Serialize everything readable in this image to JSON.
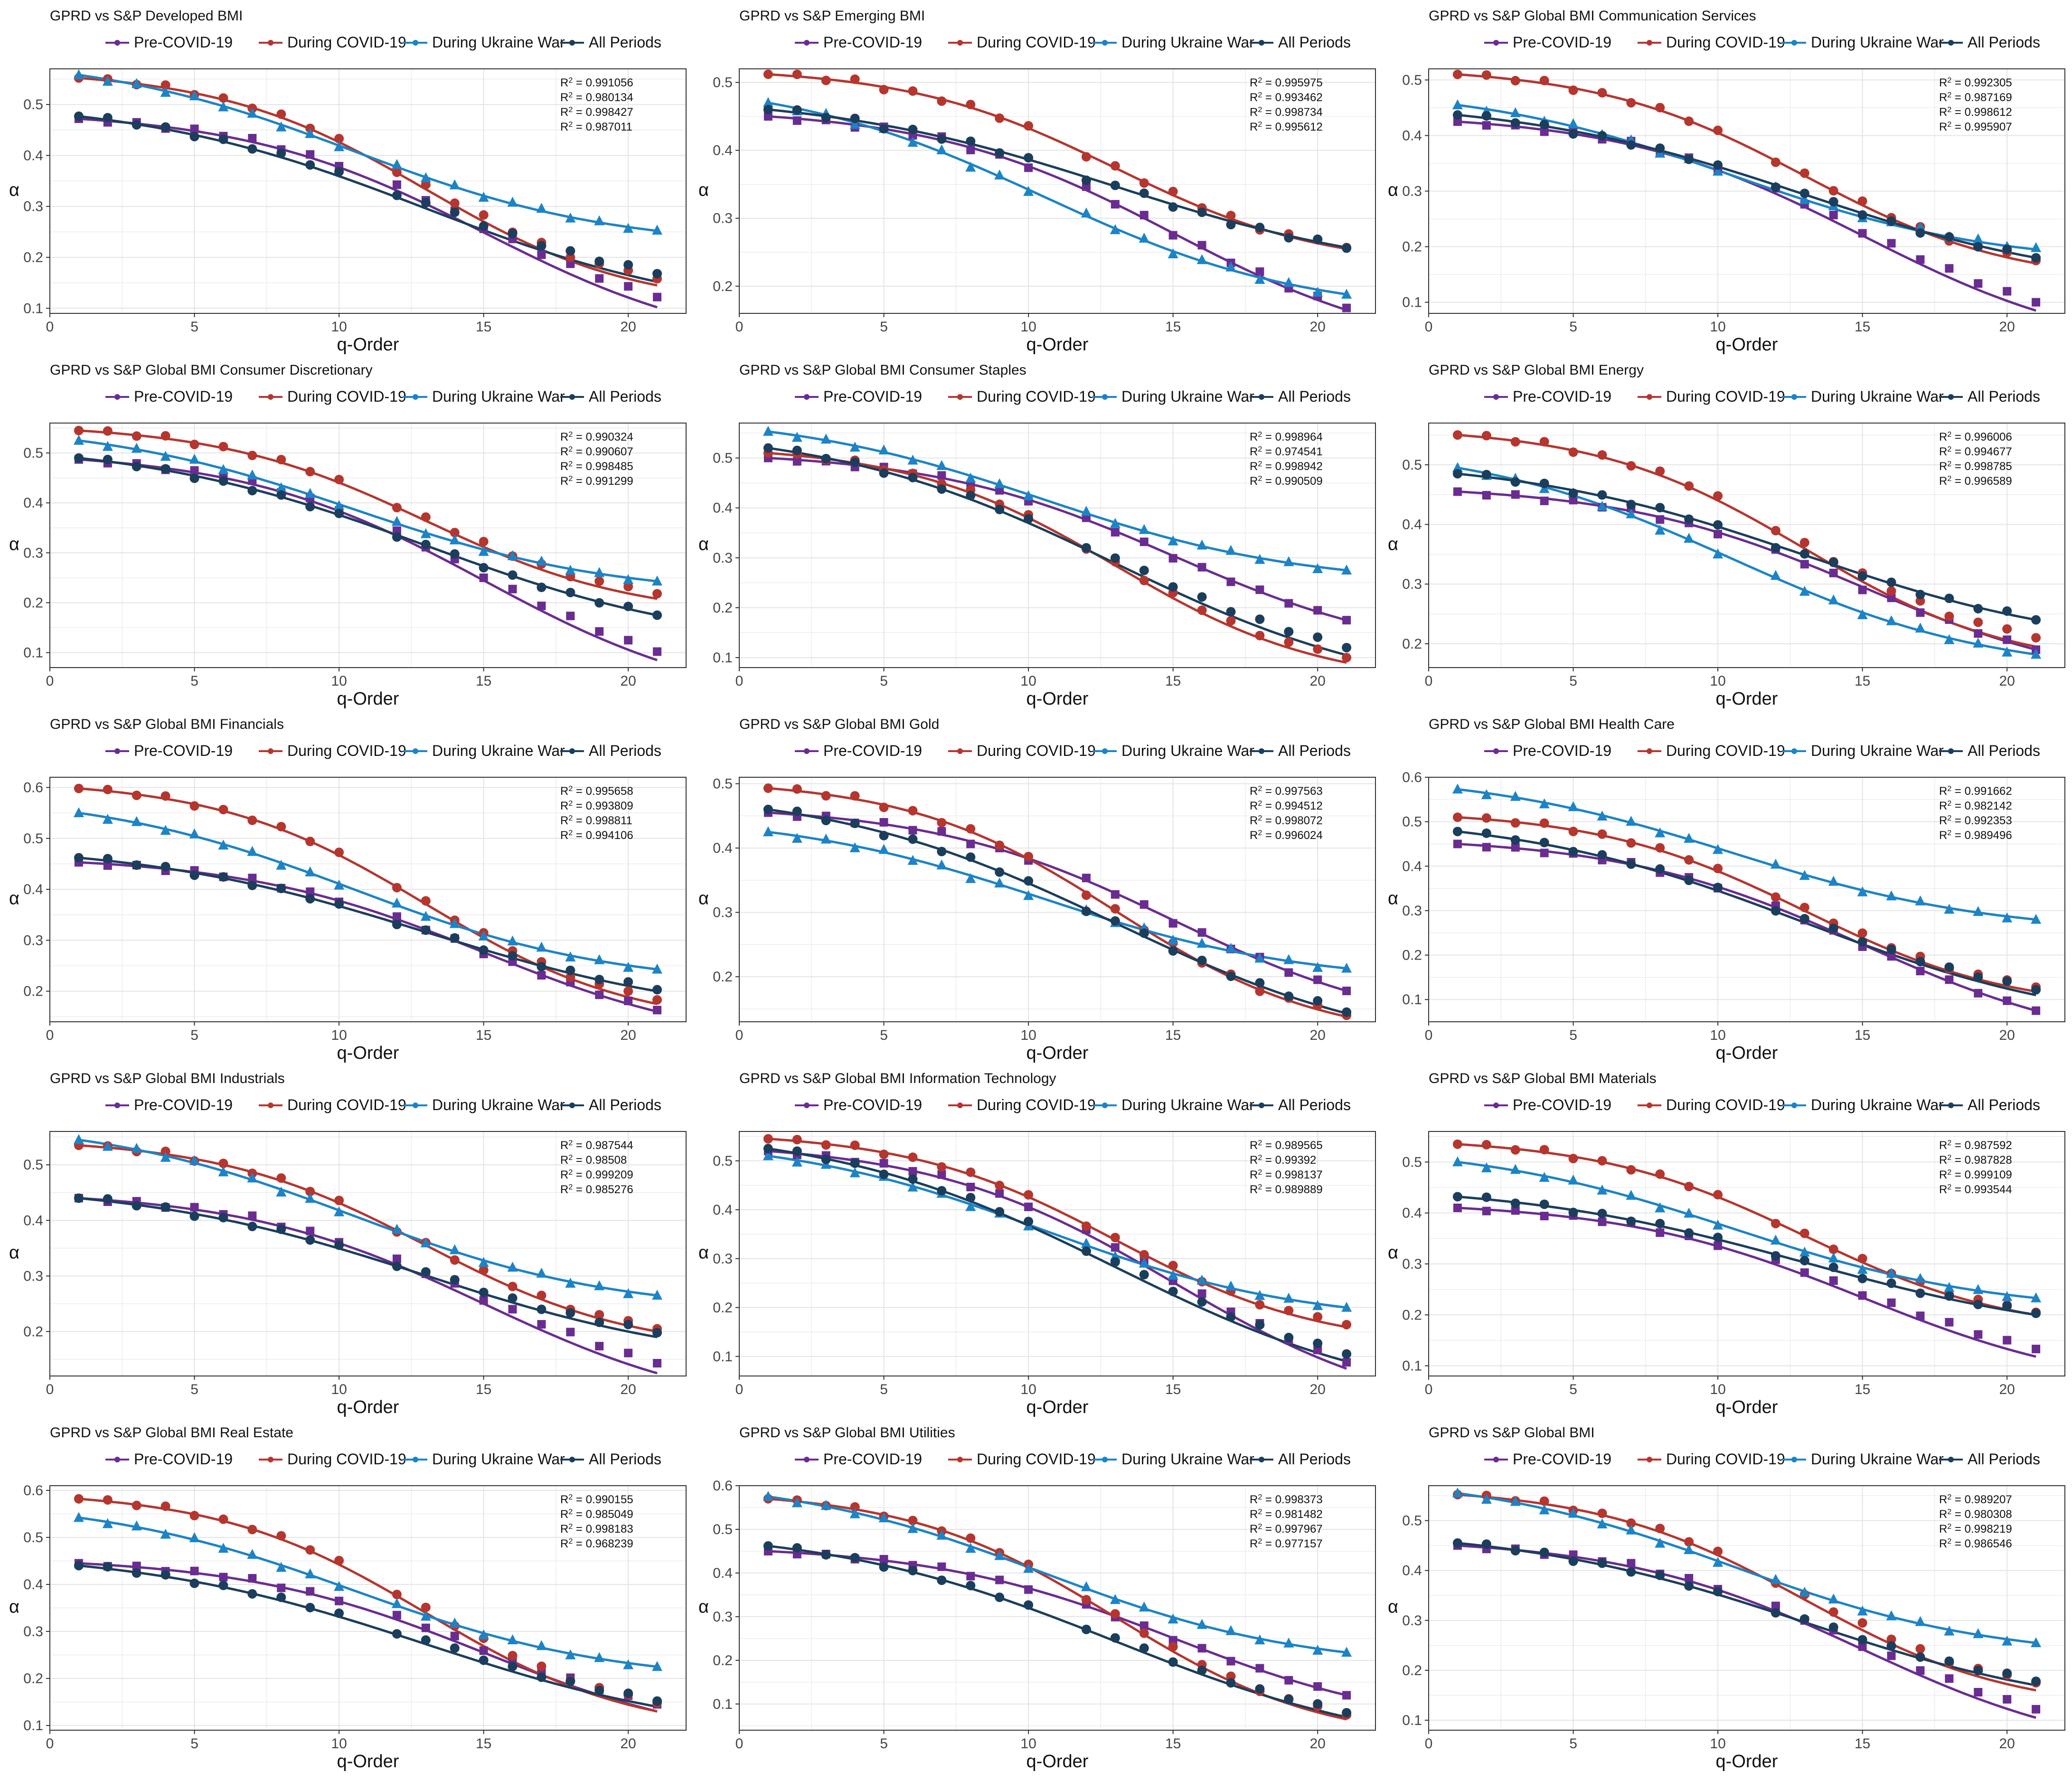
{
  "figure": {
    "colors": {
      "pre": "#6a2c91",
      "during": "#b5362f",
      "ukraine": "#1c84c6",
      "all": "#1b3e5c",
      "grid": "#e4e4e4",
      "frame": "#333333"
    },
    "legend_labels": [
      "Pre-COVID-19",
      "During COVID-19",
      "During Ukraine War",
      "All Periods"
    ],
    "xlabel": "q-Order",
    "ylabel": "α"
  },
  "chart_data": [
    {
      "type": "scatter",
      "title": "GPRD vs S&P Developed BMI",
      "xlim": [
        0,
        22
      ],
      "ylim": [
        0.09,
        0.57
      ],
      "xticks": [
        0,
        5,
        10,
        15,
        20
      ],
      "yticks": [
        0.1,
        0.2,
        0.3,
        0.4,
        0.5
      ],
      "r2": [
        "0.991056",
        "0.980134",
        "0.998427",
        "0.987011"
      ],
      "series": [
        {
          "name": "Pre-COVID-19",
          "start": 0.472,
          "end": 0.122,
          "fit_end": 0.102
        },
        {
          "name": "During COVID-19",
          "start": 0.552,
          "end": 0.158,
          "fit_end": 0.145
        },
        {
          "name": "During Ukraine War",
          "start": 0.558,
          "end": 0.253,
          "fit_end": 0.252
        },
        {
          "name": "All Periods",
          "start": 0.477,
          "end": 0.168,
          "fit_end": 0.152
        }
      ]
    },
    {
      "type": "scatter",
      "title": "GPRD vs S&P Emerging BMI",
      "xlim": [
        0,
        22
      ],
      "ylim": [
        0.16,
        0.52
      ],
      "xticks": [
        0,
        5,
        10,
        15,
        20
      ],
      "yticks": [
        0.2,
        0.3,
        0.4,
        0.5
      ],
      "r2": [
        "0.995975",
        "0.993462",
        "0.998734",
        "0.995612"
      ],
      "series": [
        {
          "name": "Pre-COVID-19",
          "start": 0.45,
          "end": 0.168,
          "fit_end": 0.165
        },
        {
          "name": "During COVID-19",
          "start": 0.512,
          "end": 0.257,
          "fit_end": 0.255
        },
        {
          "name": "During Ukraine War",
          "start": 0.47,
          "end": 0.188,
          "fit_end": 0.188
        },
        {
          "name": "All Periods",
          "start": 0.46,
          "end": 0.256,
          "fit_end": 0.257
        }
      ]
    },
    {
      "type": "scatter",
      "title": "GPRD vs S&P Global BMI Communication Services",
      "xlim": [
        0,
        22
      ],
      "ylim": [
        0.08,
        0.52
      ],
      "xticks": [
        0,
        5,
        10,
        15,
        20
      ],
      "yticks": [
        0.1,
        0.2,
        0.3,
        0.4,
        0.5
      ],
      "r2": [
        "0.992305",
        "0.987169",
        "0.998612",
        "0.995907"
      ],
      "series": [
        {
          "name": "Pre-COVID-19",
          "start": 0.425,
          "end": 0.1,
          "fit_end": 0.085
        },
        {
          "name": "During COVID-19",
          "start": 0.51,
          "end": 0.175,
          "fit_end": 0.17
        },
        {
          "name": "During Ukraine War",
          "start": 0.455,
          "end": 0.198,
          "fit_end": 0.195
        },
        {
          "name": "All Periods",
          "start": 0.437,
          "end": 0.18,
          "fit_end": 0.18
        }
      ]
    },
    {
      "type": "scatter",
      "title": "GPRD vs S&P Global BMI Consumer Discretionary",
      "xlim": [
        0,
        22
      ],
      "ylim": [
        0.07,
        0.56
      ],
      "xticks": [
        0,
        5,
        10,
        15,
        20
      ],
      "yticks": [
        0.1,
        0.2,
        0.3,
        0.4,
        0.5
      ],
      "r2": [
        "0.990324",
        "0.990607",
        "0.998485",
        "0.991299"
      ],
      "series": [
        {
          "name": "Pre-COVID-19",
          "start": 0.487,
          "end": 0.102,
          "fit_end": 0.085
        },
        {
          "name": "During COVID-19",
          "start": 0.545,
          "end": 0.218,
          "fit_end": 0.208
        },
        {
          "name": "During Ukraine War",
          "start": 0.525,
          "end": 0.243,
          "fit_end": 0.243
        },
        {
          "name": "All Periods",
          "start": 0.49,
          "end": 0.175,
          "fit_end": 0.175
        }
      ]
    },
    {
      "type": "scatter",
      "title": "GPRD vs S&P Global BMI Consumer Staples",
      "xlim": [
        0,
        22
      ],
      "ylim": [
        0.08,
        0.57
      ],
      "xticks": [
        0,
        5,
        10,
        15,
        20
      ],
      "yticks": [
        0.1,
        0.2,
        0.3,
        0.4,
        0.5
      ],
      "r2": [
        "0.998964",
        "0.974541",
        "0.998942",
        "0.990509"
      ],
      "series": [
        {
          "name": "Pre-COVID-19",
          "start": 0.5,
          "end": 0.175,
          "fit_end": 0.175
        },
        {
          "name": "During COVID-19",
          "start": 0.51,
          "end": 0.1,
          "fit_end": 0.09
        },
        {
          "name": "During Ukraine War",
          "start": 0.553,
          "end": 0.275,
          "fit_end": 0.275
        },
        {
          "name": "All Periods",
          "start": 0.52,
          "end": 0.12,
          "fit_end": 0.105
        }
      ]
    },
    {
      "type": "scatter",
      "title": "GPRD vs S&P Global BMI Energy",
      "xlim": [
        0,
        22
      ],
      "ylim": [
        0.16,
        0.57
      ],
      "xticks": [
        0,
        5,
        10,
        15,
        20
      ],
      "yticks": [
        0.2,
        0.3,
        0.4,
        0.5
      ],
      "r2": [
        "0.996006",
        "0.994677",
        "0.998785",
        "0.996589"
      ],
      "series": [
        {
          "name": "Pre-COVID-19",
          "start": 0.455,
          "end": 0.19,
          "fit_end": 0.19
        },
        {
          "name": "During COVID-19",
          "start": 0.55,
          "end": 0.21,
          "fit_end": 0.195
        },
        {
          "name": "During Ukraine War",
          "start": 0.495,
          "end": 0.182,
          "fit_end": 0.182
        },
        {
          "name": "All Periods",
          "start": 0.485,
          "end": 0.24,
          "fit_end": 0.24
        }
      ]
    },
    {
      "type": "scatter",
      "title": "GPRD vs S&P Global BMI Financials",
      "xlim": [
        0,
        22
      ],
      "ylim": [
        0.14,
        0.62
      ],
      "xticks": [
        0,
        5,
        10,
        15,
        20
      ],
      "yticks": [
        0.2,
        0.3,
        0.4,
        0.5,
        0.6
      ],
      "r2": [
        "0.995658",
        "0.993809",
        "0.998811",
        "0.994106"
      ],
      "series": [
        {
          "name": "Pre-COVID-19",
          "start": 0.453,
          "end": 0.163,
          "fit_end": 0.16
        },
        {
          "name": "During COVID-19",
          "start": 0.598,
          "end": 0.183,
          "fit_end": 0.175
        },
        {
          "name": "During Ukraine War",
          "start": 0.55,
          "end": 0.243,
          "fit_end": 0.243
        },
        {
          "name": "All Periods",
          "start": 0.462,
          "end": 0.203,
          "fit_end": 0.2
        }
      ]
    },
    {
      "type": "scatter",
      "title": "GPRD vs S&P Global BMI Gold",
      "xlim": [
        0,
        22
      ],
      "ylim": [
        0.13,
        0.51
      ],
      "xticks": [
        0,
        5,
        10,
        15,
        20
      ],
      "yticks": [
        0.2,
        0.3,
        0.4,
        0.5
      ],
      "r2": [
        "0.997563",
        "0.994512",
        "0.998072",
        "0.996024"
      ],
      "series": [
        {
          "name": "Pre-COVID-19",
          "start": 0.455,
          "end": 0.178,
          "fit_end": 0.178
        },
        {
          "name": "During COVID-19",
          "start": 0.493,
          "end": 0.14,
          "fit_end": 0.138
        },
        {
          "name": "During Ukraine War",
          "start": 0.425,
          "end": 0.213,
          "fit_end": 0.213
        },
        {
          "name": "All Periods",
          "start": 0.46,
          "end": 0.145,
          "fit_end": 0.143
        }
      ]
    },
    {
      "type": "scatter",
      "title": "GPRD vs S&P Global BMI Health Care",
      "xlim": [
        0,
        22
      ],
      "ylim": [
        0.05,
        0.6
      ],
      "xticks": [
        0,
        5,
        10,
        15,
        20
      ],
      "yticks": [
        0.1,
        0.2,
        0.3,
        0.4,
        0.5,
        0.6
      ],
      "r2": [
        "0.991662",
        "0.982142",
        "0.992353",
        "0.989496"
      ],
      "series": [
        {
          "name": "Pre-COVID-19",
          "start": 0.45,
          "end": 0.075,
          "fit_end": 0.075
        },
        {
          "name": "During COVID-19",
          "start": 0.51,
          "end": 0.128,
          "fit_end": 0.118
        },
        {
          "name": "During Ukraine War",
          "start": 0.573,
          "end": 0.28,
          "fit_end": 0.28
        },
        {
          "name": "All Periods",
          "start": 0.478,
          "end": 0.122,
          "fit_end": 0.11
        }
      ]
    },
    {
      "type": "scatter",
      "title": "GPRD vs S&P Global BMI Industrials",
      "xlim": [
        0,
        22
      ],
      "ylim": [
        0.12,
        0.56
      ],
      "xticks": [
        0,
        5,
        10,
        15,
        20
      ],
      "yticks": [
        0.2,
        0.3,
        0.4,
        0.5
      ],
      "r2": [
        "0.987544",
        "0.98508",
        "0.999209",
        "0.985276"
      ],
      "series": [
        {
          "name": "Pre-COVID-19",
          "start": 0.44,
          "end": 0.143,
          "fit_end": 0.125
        },
        {
          "name": "During COVID-19",
          "start": 0.535,
          "end": 0.205,
          "fit_end": 0.2
        },
        {
          "name": "During Ukraine War",
          "start": 0.545,
          "end": 0.265,
          "fit_end": 0.265
        },
        {
          "name": "All Periods",
          "start": 0.44,
          "end": 0.198,
          "fit_end": 0.19
        }
      ]
    },
    {
      "type": "scatter",
      "title": "GPRD vs S&P Global BMI Information Technology",
      "xlim": [
        0,
        22
      ],
      "ylim": [
        0.06,
        0.56
      ],
      "xticks": [
        0,
        5,
        10,
        15,
        20
      ],
      "yticks": [
        0.1,
        0.2,
        0.3,
        0.4,
        0.5
      ],
      "r2": [
        "0.989565",
        "0.99392",
        "0.998137",
        "0.989889"
      ],
      "series": [
        {
          "name": "Pre-COVID-19",
          "start": 0.52,
          "end": 0.088,
          "fit_end": 0.075
        },
        {
          "name": "During COVID-19",
          "start": 0.545,
          "end": 0.165,
          "fit_end": 0.16
        },
        {
          "name": "During Ukraine War",
          "start": 0.51,
          "end": 0.2,
          "fit_end": 0.2
        },
        {
          "name": "All Periods",
          "start": 0.525,
          "end": 0.105,
          "fit_end": 0.09
        }
      ]
    },
    {
      "type": "scatter",
      "title": "GPRD vs S&P Global BMI Materials",
      "xlim": [
        0,
        22
      ],
      "ylim": [
        0.08,
        0.56
      ],
      "xticks": [
        0,
        5,
        10,
        15,
        20
      ],
      "yticks": [
        0.1,
        0.2,
        0.3,
        0.4,
        0.5
      ],
      "r2": [
        "0.987592",
        "0.987828",
        "0.999109",
        "0.993544"
      ],
      "series": [
        {
          "name": "Pre-COVID-19",
          "start": 0.41,
          "end": 0.133,
          "fit_end": 0.118
        },
        {
          "name": "During COVID-19",
          "start": 0.535,
          "end": 0.205,
          "fit_end": 0.2
        },
        {
          "name": "During Ukraine War",
          "start": 0.5,
          "end": 0.233,
          "fit_end": 0.233
        },
        {
          "name": "All Periods",
          "start": 0.432,
          "end": 0.203,
          "fit_end": 0.2
        }
      ]
    },
    {
      "type": "scatter",
      "title": "GPRD vs S&P Global BMI Real Estate",
      "xlim": [
        0,
        22
      ],
      "ylim": [
        0.09,
        0.61
      ],
      "xticks": [
        0,
        5,
        10,
        15,
        20
      ],
      "yticks": [
        0.1,
        0.2,
        0.3,
        0.4,
        0.5,
        0.6
      ],
      "r2": [
        "0.990155",
        "0.985049",
        "0.998183",
        "0.968239"
      ],
      "series": [
        {
          "name": "Pre-COVID-19",
          "start": 0.445,
          "end": 0.145,
          "fit_end": 0.13
        },
        {
          "name": "During COVID-19",
          "start": 0.582,
          "end": 0.148,
          "fit_end": 0.13
        },
        {
          "name": "During Ukraine War",
          "start": 0.542,
          "end": 0.225,
          "fit_end": 0.225
        },
        {
          "name": "All Periods",
          "start": 0.44,
          "end": 0.152,
          "fit_end": 0.14
        }
      ]
    },
    {
      "type": "scatter",
      "title": "GPRD vs S&P Global BMI Utilities",
      "xlim": [
        0,
        22
      ],
      "ylim": [
        0.04,
        0.6
      ],
      "xticks": [
        0,
        5,
        10,
        15,
        20
      ],
      "yticks": [
        0.1,
        0.2,
        0.3,
        0.4,
        0.5,
        0.6
      ],
      "r2": [
        "0.998373",
        "0.981482",
        "0.997967",
        "0.977157"
      ],
      "series": [
        {
          "name": "Pre-COVID-19",
          "start": 0.45,
          "end": 0.12,
          "fit_end": 0.12
        },
        {
          "name": "During COVID-19",
          "start": 0.57,
          "end": 0.075,
          "fit_end": 0.065
        },
        {
          "name": "During Ukraine War",
          "start": 0.575,
          "end": 0.218,
          "fit_end": 0.218
        },
        {
          "name": "All Periods",
          "start": 0.462,
          "end": 0.08,
          "fit_end": 0.07
        }
      ]
    },
    {
      "type": "scatter",
      "title": "GPRD vs S&P Global BMI",
      "xlim": [
        0,
        22
      ],
      "ylim": [
        0.08,
        0.57
      ],
      "xticks": [
        0,
        5,
        10,
        15,
        20
      ],
      "yticks": [
        0.1,
        0.2,
        0.3,
        0.4,
        0.5
      ],
      "r2": [
        "0.989207",
        "0.980308",
        "0.998219",
        "0.986546"
      ],
      "series": [
        {
          "name": "Pre-COVID-19",
          "start": 0.45,
          "end": 0.122,
          "fit_end": 0.105
        },
        {
          "name": "During COVID-19",
          "start": 0.552,
          "end": 0.175,
          "fit_end": 0.16
        },
        {
          "name": "During Ukraine War",
          "start": 0.555,
          "end": 0.255,
          "fit_end": 0.255
        },
        {
          "name": "All Periods",
          "start": 0.455,
          "end": 0.178,
          "fit_end": 0.17
        }
      ]
    }
  ]
}
